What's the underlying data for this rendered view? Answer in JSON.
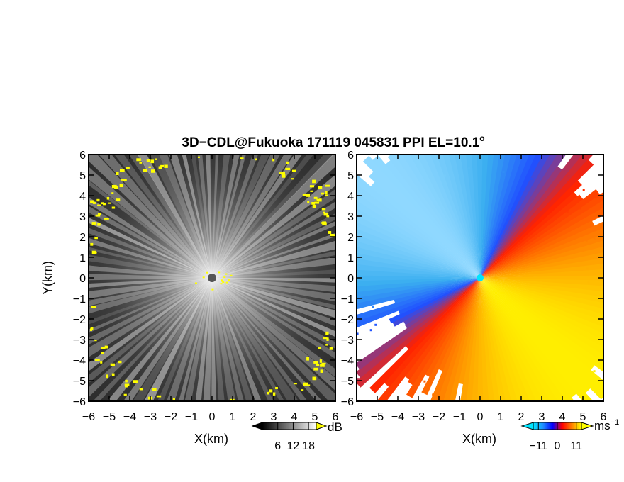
{
  "title": "3D−CDL@Fukuoka 171119 045831 PPI EL=10.1",
  "title_degree": "o",
  "chart_data": [
    {
      "type": "heatmap",
      "name": "snr",
      "xlabel": "X(km)",
      "ylabel": "Y(km)",
      "xlim": [
        -6,
        6
      ],
      "ylim": [
        -6,
        6
      ],
      "x_ticks": [
        "−6",
        "−5",
        "−4",
        "−3",
        "−2",
        "−1",
        "0",
        "1",
        "2",
        "3",
        "4",
        "5",
        "6"
      ],
      "y_ticks": [
        "6",
        "5",
        "4",
        "3",
        "2",
        "1",
        "0",
        "−1",
        "−2",
        "−3",
        "−4",
        "−5",
        "−6"
      ],
      "colorbar": {
        "unit": "dB",
        "tick_labels": [
          "6",
          "12",
          "18"
        ],
        "tick_values": [
          6,
          12,
          18
        ],
        "range": [
          0,
          21
        ],
        "colors": [
          "#000000",
          "#ffffff"
        ]
      },
      "highlight_color": "#ffff00"
    },
    {
      "type": "heatmap",
      "name": "radial-velocity",
      "xlabel": "X(km)",
      "xlim": [
        -6,
        6
      ],
      "ylim": [
        -6,
        6
      ],
      "x_ticks": [
        "−6",
        "−5",
        "−4",
        "−3",
        "−2",
        "−1",
        "0",
        "1",
        "2",
        "3",
        "4",
        "5",
        "6"
      ],
      "y_ticks": [
        "6",
        "5",
        "4",
        "3",
        "2",
        "1",
        "0",
        "−1",
        "−2",
        "−3",
        "−4",
        "−5",
        "−6"
      ],
      "colorbar": {
        "unit": "ms",
        "unit_superscript": "−1",
        "tick_labels": [
          "−11",
          "0",
          "11"
        ],
        "tick_values": [
          -11,
          0,
          11
        ],
        "range": [
          -14,
          14
        ],
        "colors": [
          "#00e5ff",
          "#1e90ff",
          "#0000ff",
          "#ff0000",
          "#ff8000",
          "#ffff00"
        ]
      }
    }
  ]
}
